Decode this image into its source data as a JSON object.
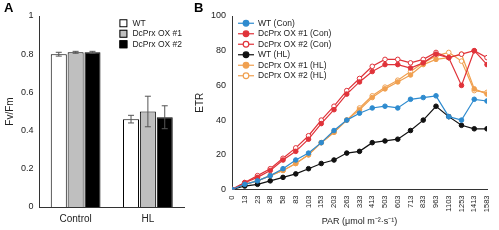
{
  "chart_data": [
    {
      "type": "bar",
      "panel": "A",
      "y_label": "Fv/Fm",
      "categories": [
        "Control",
        "HL"
      ],
      "series": [
        {
          "name": "WT",
          "color": "#ffffff",
          "values": [
            0.8,
            0.46
          ],
          "errors": [
            0.01,
            0.02
          ]
        },
        {
          "name": "DcPrx OX #1",
          "color": "#bfbfbf",
          "values": [
            0.81,
            0.5
          ],
          "errors": [
            0.005,
            0.08
          ]
        },
        {
          "name": "DcPrx OX #2",
          "color": "#000000",
          "values": [
            0.81,
            0.47
          ],
          "errors": [
            0.005,
            0.06
          ]
        }
      ],
      "ylim": [
        0,
        1
      ],
      "yticks": [
        0,
        0.2,
        0.4,
        0.6,
        0.8,
        1
      ],
      "grid": false,
      "legend": "upper right"
    },
    {
      "type": "line",
      "panel": "B",
      "y_label": "ETR",
      "x_label": "PAR (μmol m⁻²·s⁻¹)",
      "categories": [
        "0",
        "13",
        "23",
        "38",
        "58",
        "83",
        "103",
        "153",
        "203",
        "263",
        "333",
        "413",
        "503",
        "603",
        "713",
        "833",
        "963",
        "1103",
        "1253",
        "1413",
        "1583"
      ],
      "series": [
        {
          "name": "WT (Con)",
          "color": "#2e8bcf",
          "marker": "circle",
          "values": [
            0,
            3,
            5,
            8,
            12,
            17,
            21,
            27,
            34,
            40,
            44,
            47,
            48,
            47,
            52,
            53,
            54,
            42,
            40,
            52,
            51
          ]
        },
        {
          "name": "DcPrx OX #1 (Con)",
          "color": "#e0333a",
          "marker": "circle",
          "values": [
            0,
            4,
            7,
            11,
            17,
            22,
            29,
            38,
            46,
            55,
            62,
            68,
            72,
            72,
            70,
            73,
            78,
            76,
            60,
            80,
            72
          ]
        },
        {
          "name": "DcPrx OX #2 (Con)",
          "color": "#e0333a",
          "marker": "open_circle",
          "values": [
            0,
            4,
            8,
            12,
            18,
            24,
            31,
            40,
            48,
            57,
            64,
            71,
            75,
            75,
            73,
            75,
            79,
            76,
            78,
            80,
            76
          ]
        },
        {
          "name": "WT (HL)",
          "color": "#111111",
          "marker": "circle",
          "values": [
            0,
            2,
            3,
            5,
            7,
            9,
            12,
            15,
            17,
            21,
            22,
            27,
            28,
            29,
            34,
            40,
            48,
            42,
            37,
            35,
            35
          ]
        },
        {
          "name": "DcPrx OX #1 (HL)",
          "color": "#f0a050",
          "marker": "circle",
          "values": [
            0,
            3,
            5,
            8,
            11,
            15,
            20,
            27,
            33,
            40,
            46,
            53,
            58,
            62,
            66,
            72,
            75,
            76,
            78,
            58,
            55
          ]
        },
        {
          "name": "DcPrx OX #2 (HL)",
          "color": "#f0a050",
          "marker": "open_circle",
          "values": [
            0,
            3,
            5,
            8,
            11,
            15,
            20,
            27,
            33,
            40,
            47,
            54,
            59,
            63,
            68,
            73,
            77,
            79,
            74,
            57,
            56
          ]
        }
      ],
      "ylim": [
        0,
        100
      ],
      "yticks": [
        0,
        20,
        40,
        60,
        80,
        100
      ],
      "grid": false,
      "legend": "upper left"
    }
  ]
}
